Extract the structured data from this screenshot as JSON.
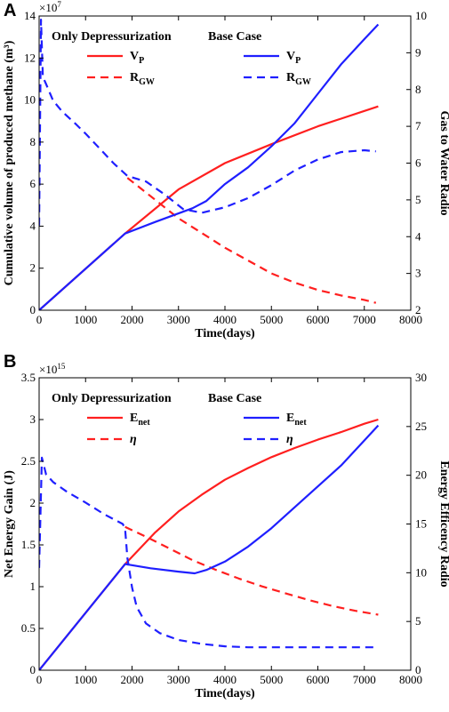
{
  "chart_data": [
    {
      "type": "line",
      "panel": "A",
      "xlabel": "Time(days)",
      "ylabel_left": "Cumulative volume of produced methane (m³)",
      "ylabel_right": "Gas to Water Radio",
      "xlim": [
        0,
        8000
      ],
      "xticks": [
        "0",
        "1000",
        "2000",
        "3000",
        "4000",
        "5000",
        "6000",
        "7000",
        "8000"
      ],
      "ylim_left": [
        0,
        14
      ],
      "yticks_left": [
        "0",
        "2",
        "4",
        "6",
        "8",
        "10",
        "12",
        "14"
      ],
      "left_multiplier": "×10",
      "left_multiplier_exp": "7",
      "ylim_right": [
        2,
        10
      ],
      "yticks_right": [
        "2",
        "3",
        "4",
        "5",
        "6",
        "7",
        "8",
        "9",
        "10"
      ],
      "legend_groups": [
        "Only Depressurization",
        "Base Case"
      ],
      "series": [
        {
          "name": "V",
          "sub": "P",
          "group": "Only Depressurization",
          "axis": "left",
          "color": "#ff1f1f",
          "dash": "solid",
          "x": [
            0,
            1850,
            3000,
            4000,
            5000,
            6000,
            7300
          ],
          "y": [
            0,
            3.65,
            5.75,
            7.0,
            7.9,
            8.75,
            9.7
          ]
        },
        {
          "name": "R",
          "sub": "GW",
          "group": "Only Depressurization",
          "axis": "right",
          "color": "#ff1f1f",
          "dash": "dashed",
          "x": [
            1900,
            2300,
            2700,
            3000,
            3500,
            4000,
            4500,
            5000,
            5500,
            6000,
            6500,
            7000,
            7250
          ],
          "y": [
            5.6,
            5.2,
            4.8,
            4.5,
            4.1,
            3.7,
            3.35,
            3.0,
            2.75,
            2.55,
            2.4,
            2.28,
            2.2
          ]
        },
        {
          "name": "V",
          "sub": "P",
          "group": "Base Case",
          "axis": "left",
          "color": "#1f1fff",
          "dash": "solid",
          "x": [
            0,
            1850,
            2500,
            3300,
            3600,
            4000,
            4500,
            5000,
            5500,
            6000,
            6500,
            7000,
            7300
          ],
          "y": [
            0,
            3.65,
            4.2,
            4.85,
            5.2,
            6.0,
            6.8,
            7.8,
            8.9,
            10.3,
            11.7,
            12.9,
            13.6
          ]
        },
        {
          "name": "R",
          "sub": "GW",
          "group": "Base Case",
          "axis": "right",
          "color": "#1f1fff",
          "dash": "dashed",
          "x": [
            0,
            40,
            80,
            150,
            300,
            500,
            800,
            1000,
            1300,
            1600,
            1900,
            2300,
            2700,
            3100,
            3500,
            4000,
            4500,
            5000,
            5500,
            6000,
            6500,
            7000,
            7250
          ],
          "y": [
            4.3,
            9.9,
            8.35,
            8.15,
            7.7,
            7.4,
            7.05,
            6.8,
            6.4,
            6.0,
            5.65,
            5.5,
            5.15,
            4.75,
            4.65,
            4.8,
            5.05,
            5.4,
            5.8,
            6.1,
            6.3,
            6.35,
            6.32
          ]
        }
      ]
    },
    {
      "type": "line",
      "panel": "B",
      "xlabel": "Time(days)",
      "ylabel_left": "Net Energy Gain (J)",
      "ylabel_right": "Energy Efficency Radio",
      "xlim": [
        0,
        8000
      ],
      "xticks": [
        "0",
        "1000",
        "2000",
        "3000",
        "4000",
        "5000",
        "6000",
        "7000",
        "8000"
      ],
      "ylim_left": [
        0,
        3.5
      ],
      "yticks_left": [
        "0",
        "0.5",
        "1",
        "1.5",
        "2",
        "2.5",
        "3",
        "3.5"
      ],
      "left_multiplier": "×10",
      "left_multiplier_exp": "15",
      "ylim_right": [
        0,
        30
      ],
      "yticks_right": [
        "0",
        "5",
        "10",
        "15",
        "20",
        "25",
        "30"
      ],
      "legend_groups": [
        "Only Depressurization",
        "Base Case"
      ],
      "series": [
        {
          "name": "E",
          "sub": "net",
          "group": "Only Depressurization",
          "axis": "left",
          "color": "#ff1f1f",
          "dash": "solid",
          "x": [
            0,
            1850,
            2500,
            3000,
            3500,
            4000,
            4500,
            5000,
            5500,
            6000,
            6500,
            7000,
            7300
          ],
          "y": [
            0,
            1.27,
            1.65,
            1.9,
            2.1,
            2.28,
            2.42,
            2.55,
            2.66,
            2.76,
            2.85,
            2.95,
            3.0
          ]
        },
        {
          "name": "η",
          "sub": "",
          "group": "Only Depressurization",
          "axis": "right",
          "color": "#ff1f1f",
          "dash": "dashed",
          "x": [
            1850,
            2300,
            2800,
            3300,
            3800,
            4300,
            4800,
            5300,
            5800,
            6300,
            6800,
            7300
          ],
          "y": [
            14.7,
            13.7,
            12.5,
            11.3,
            10.3,
            9.4,
            8.6,
            7.9,
            7.2,
            6.6,
            6.1,
            5.7
          ]
        },
        {
          "name": "E",
          "sub": "net",
          "group": "Base Case",
          "axis": "left",
          "color": "#1f1fff",
          "dash": "solid",
          "x": [
            0,
            1850,
            2400,
            3000,
            3350,
            3600,
            4000,
            4500,
            5000,
            5500,
            6000,
            6500,
            7000,
            7300
          ],
          "y": [
            0,
            1.27,
            1.22,
            1.18,
            1.16,
            1.2,
            1.3,
            1.48,
            1.7,
            1.95,
            2.2,
            2.45,
            2.75,
            2.93
          ]
        },
        {
          "name": "η",
          "sub": "",
          "group": "Base Case",
          "axis": "right",
          "color": "#1f1fff",
          "dash": "dashed",
          "x": [
            0,
            60,
            150,
            300,
            600,
            1000,
            1400,
            1800,
            1850,
            1900,
            2000,
            2100,
            2300,
            2600,
            3000,
            3500,
            4000,
            4500,
            5000,
            6000,
            7300
          ],
          "y": [
            10.5,
            21.8,
            20.1,
            19.3,
            18.3,
            17.2,
            16.0,
            15.0,
            14.5,
            11.5,
            8.5,
            6.5,
            4.8,
            3.8,
            3.1,
            2.7,
            2.45,
            2.35,
            2.35,
            2.35,
            2.35
          ]
        }
      ]
    }
  ]
}
